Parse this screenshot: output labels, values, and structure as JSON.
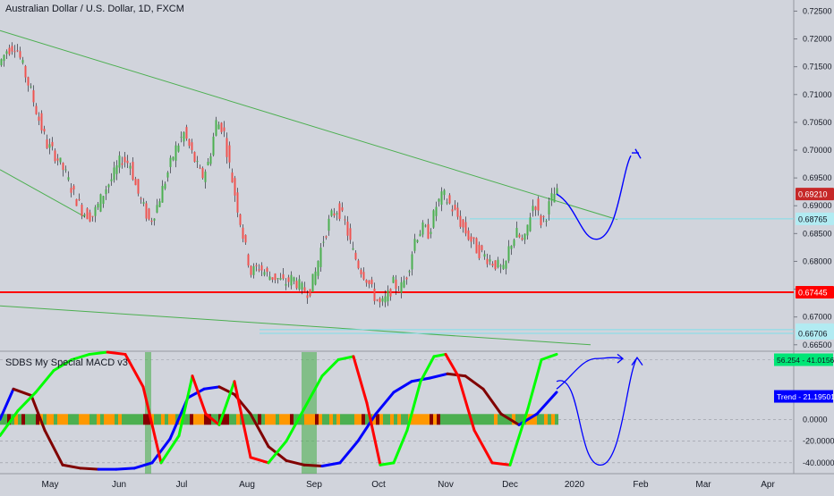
{
  "header": {
    "symbol_title": "Australian Dollar / U.S. Dollar, 1D, FXCM"
  },
  "indicator": {
    "title": "SDBS My Special MACD v3",
    "trend_badge": "Trend - 21.19501",
    "signal_badge": "56.254 - 41.01561"
  },
  "colors": {
    "background": "#d1d4dc",
    "up_candle": "#4caf50",
    "down_candle": "#ef5350",
    "green_line": "#4caf50",
    "support_line": "#ff0000",
    "cyan_line": "#80deea",
    "projection": "#0000ff",
    "macd_green": "#00ff00",
    "macd_red": "#ff0000",
    "macd_dark": "#800000",
    "macd_blue": "#0000ff",
    "hist_green": "#4caf50",
    "hist_orange": "#ff9800",
    "hist_dark": "#880000"
  },
  "chart_data": [
    {
      "type": "candlestick",
      "title": "Australian Dollar / U.S. Dollar, 1D, FXCM",
      "x_ticks": [
        "May",
        "Jun",
        "Jul",
        "Aug",
        "Sep",
        "Oct",
        "Nov",
        "Dec",
        "2020",
        "Feb",
        "Mar",
        "Apr"
      ],
      "y_ticks": [
        "0.72500",
        "0.72000",
        "0.71500",
        "0.71000",
        "0.70500",
        "0.70000",
        "0.69500",
        "0.69000",
        "0.68500",
        "0.68000",
        "0.67500",
        "0.67000",
        "0.66500"
      ],
      "ylim": [
        0.664,
        0.727
      ],
      "price_labels": [
        {
          "value": "0.69210",
          "color": "#c62828",
          "text_color": "#ffffff"
        },
        {
          "value": "0.68765",
          "color": "#b2ebf2",
          "text_color": "#131722"
        },
        {
          "value": "0.67445",
          "color": "#ff0000",
          "text_color": "#ffffff"
        },
        {
          "value": "0.66771",
          "color": "#b2ebf2",
          "text_color": "#131722"
        },
        {
          "value": "0.66706",
          "color": "#b2ebf2",
          "text_color": "#131722"
        }
      ],
      "price_path": [
        [
          0,
          0.715
        ],
        [
          10,
          0.718
        ],
        [
          20,
          0.719
        ],
        [
          28,
          0.715
        ],
        [
          38,
          0.71
        ],
        [
          45,
          0.706
        ],
        [
          55,
          0.701
        ],
        [
          65,
          0.699
        ],
        [
          75,
          0.696
        ],
        [
          85,
          0.692
        ],
        [
          95,
          0.689
        ],
        [
          105,
          0.688
        ],
        [
          112,
          0.69
        ],
        [
          120,
          0.693
        ],
        [
          128,
          0.695
        ],
        [
          138,
          0.6985
        ],
        [
          148,
          0.6975
        ],
        [
          155,
          0.693
        ],
        [
          162,
          0.69
        ],
        [
          170,
          0.687
        ],
        [
          178,
          0.69
        ],
        [
          188,
          0.695
        ],
        [
          198,
          0.7
        ],
        [
          208,
          0.703
        ],
        [
          218,
          0.699
        ],
        [
          228,
          0.695
        ],
        [
          236,
          0.698
        ],
        [
          244,
          0.705
        ],
        [
          252,
          0.704
        ],
        [
          258,
          0.698
        ],
        [
          264,
          0.693
        ],
        [
          270,
          0.688
        ],
        [
          276,
          0.683
        ],
        [
          283,
          0.678
        ],
        [
          292,
          0.679
        ],
        [
          302,
          0.6775
        ],
        [
          312,
          0.677
        ],
        [
          320,
          0.676
        ],
        [
          330,
          0.677
        ],
        [
          340,
          0.675
        ],
        [
          348,
          0.6745
        ],
        [
          355,
          0.678
        ],
        [
          362,
          0.683
        ],
        [
          372,
          0.688
        ],
        [
          380,
          0.6895
        ],
        [
          388,
          0.687
        ],
        [
          396,
          0.682
        ],
        [
          404,
          0.679
        ],
        [
          412,
          0.677
        ],
        [
          420,
          0.674
        ],
        [
          428,
          0.672
        ],
        [
          435,
          0.6735
        ],
        [
          442,
          0.676
        ],
        [
          450,
          0.675
        ],
        [
          458,
          0.678
        ],
        [
          466,
          0.684
        ],
        [
          474,
          0.686
        ],
        [
          482,
          0.685
        ],
        [
          490,
          0.69
        ],
        [
          498,
          0.692
        ],
        [
          506,
          0.69
        ],
        [
          514,
          0.688
        ],
        [
          520,
          0.686
        ],
        [
          528,
          0.684
        ],
        [
          536,
          0.682
        ],
        [
          544,
          0.681
        ],
        [
          552,
          0.68
        ],
        [
          560,
          0.679
        ],
        [
          566,
          0.678
        ],
        [
          572,
          0.683
        ],
        [
          580,
          0.685
        ],
        [
          588,
          0.683
        ],
        [
          594,
          0.688
        ],
        [
          600,
          0.691
        ],
        [
          606,
          0.687
        ],
        [
          612,
          0.688
        ],
        [
          618,
          0.691
        ],
        [
          622,
          0.6921
        ]
      ],
      "annotations": [
        {
          "kind": "resistance",
          "points": [
            [
              0,
              0.7215
            ],
            [
              690,
              0.6875
            ]
          ]
        },
        {
          "kind": "trendline",
          "points": [
            [
              0,
              0.6965
            ],
            [
              95,
              0.688
            ]
          ]
        },
        {
          "kind": "trendline",
          "points": [
            [
              0,
              0.672
            ],
            [
              660,
              0.665
            ]
          ]
        },
        {
          "kind": "support",
          "value": 0.67445
        },
        {
          "kind": "cyan_level",
          "value": 0.68765,
          "from": 525
        },
        {
          "kind": "cyan_level",
          "value": 0.66771,
          "from": 290
        },
        {
          "kind": "cyan_level",
          "value": 0.66706,
          "from": 290
        }
      ]
    },
    {
      "type": "line",
      "title": "SDBS My Special MACD v3",
      "y_ticks": [
        "0.0000",
        "-20.0000",
        "-40.0000"
      ],
      "ylim": [
        -50,
        62
      ],
      "series": [
        {
          "values": [
            [
              0,
              0
            ],
            [
              15,
              28
            ],
            [
              35,
              22
            ],
            [
              50,
              -10
            ],
            [
              70,
              -42
            ],
            [
              90,
              -45
            ],
            [
              110,
              -46
            ],
            [
              130,
              -46
            ],
            [
              150,
              -45
            ],
            [
              170,
              -40
            ],
            [
              190,
              -18
            ],
            [
              210,
              20
            ],
            [
              228,
              28
            ],
            [
              245,
              30
            ],
            [
              262,
              23
            ],
            [
              280,
              5
            ],
            [
              300,
              -25
            ],
            [
              320,
              -38
            ],
            [
              340,
              -42
            ],
            [
              360,
              -43
            ],
            [
              380,
              -40
            ],
            [
              400,
              -20
            ],
            [
              420,
              5
            ],
            [
              440,
              25
            ],
            [
              460,
              35
            ],
            [
              480,
              38
            ],
            [
              500,
              42
            ],
            [
              520,
              40
            ],
            [
              540,
              28
            ],
            [
              560,
              5
            ],
            [
              580,
              -5
            ],
            [
              600,
              5
            ],
            [
              622,
              25
            ]
          ]
        },
        {
          "values": [
            [
              0,
              -15
            ],
            [
              20,
              8
            ],
            [
              40,
              25
            ],
            [
              60,
              45
            ],
            [
              80,
              55
            ],
            [
              100,
              60
            ],
            [
              120,
              62
            ],
            [
              140,
              60
            ],
            [
              160,
              30
            ],
            [
              180,
              -40
            ],
            [
              200,
              -15
            ],
            [
              215,
              40
            ],
            [
              230,
              5
            ],
            [
              245,
              -5
            ],
            [
              262,
              35
            ],
            [
              280,
              -35
            ],
            [
              300,
              -40
            ],
            [
              320,
              -20
            ],
            [
              340,
              10
            ],
            [
              360,
              40
            ],
            [
              378,
              55
            ],
            [
              395,
              58
            ],
            [
              410,
              15
            ],
            [
              425,
              -42
            ],
            [
              440,
              -40
            ],
            [
              455,
              -10
            ],
            [
              470,
              35
            ],
            [
              485,
              58
            ],
            [
              498,
              60
            ],
            [
              512,
              40
            ],
            [
              530,
              -10
            ],
            [
              550,
              -40
            ],
            [
              570,
              -42
            ],
            [
              590,
              10
            ],
            [
              605,
              55
            ],
            [
              615,
              58
            ],
            [
              622,
              60
            ]
          ]
        },
        {
          "projection": [
            [
              622,
              28
            ],
            [
              640,
              40
            ],
            [
              660,
              45
            ],
            [
              680,
              48
            ],
            [
              700,
              50
            ]
          ]
        }
      ]
    }
  ]
}
